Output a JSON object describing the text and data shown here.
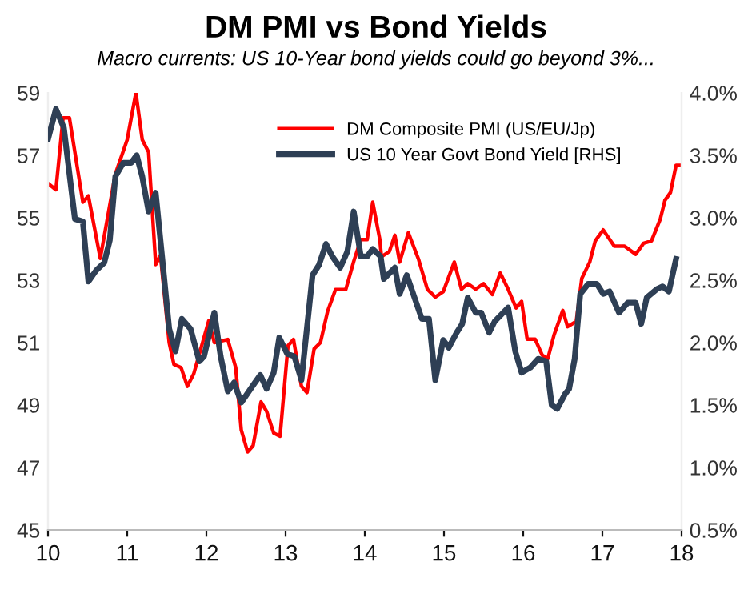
{
  "chart_data": {
    "type": "line",
    "title": "DM PMI vs Bond Yields",
    "subtitle": "Macro currents: US 10-Year bond yields could go beyond 3%...",
    "series": [
      {
        "name": "DM Composite PMI (US/EU/Jp)",
        "color": "#ff0000",
        "x": [
          10.0,
          10.1,
          10.19,
          10.27,
          10.44,
          10.51,
          10.66,
          10.85,
          11.0,
          11.11,
          11.19,
          11.27,
          11.36,
          11.42,
          11.53,
          11.59,
          11.68,
          11.76,
          11.84,
          12.03,
          12.1,
          12.27,
          12.37,
          12.44,
          12.52,
          12.59,
          12.69,
          12.76,
          12.85,
          12.93,
          13.03,
          13.1,
          13.2,
          13.27,
          13.36,
          13.44,
          13.53,
          13.63,
          13.76,
          13.86,
          13.95,
          14.03,
          14.1,
          14.19,
          14.21,
          14.31,
          14.38,
          14.44,
          14.55,
          14.68,
          14.79,
          14.89,
          14.99,
          15.13,
          15.22,
          15.3,
          15.4,
          15.5,
          15.61,
          15.71,
          15.81,
          15.91,
          15.98,
          16.05,
          16.15,
          16.24,
          16.31,
          16.39,
          16.5,
          16.56,
          16.67,
          16.74,
          16.84,
          16.91,
          17.01,
          17.15,
          17.28,
          17.42,
          17.52,
          17.62,
          17.73,
          17.79,
          17.86,
          17.93,
          18.0
        ],
        "values": [
          56.1,
          55.9,
          58.2,
          58.2,
          55.5,
          55.7,
          53.7,
          56.4,
          57.5,
          59.0,
          57.5,
          57.1,
          53.5,
          53.8,
          51.0,
          50.3,
          50.2,
          49.6,
          50.0,
          51.7,
          51.0,
          51.1,
          50.2,
          48.2,
          47.5,
          47.7,
          49.1,
          48.8,
          48.1,
          48.0,
          50.9,
          51.1,
          49.6,
          49.4,
          50.8,
          51.0,
          52.0,
          52.7,
          52.7,
          53.6,
          54.3,
          54.3,
          55.5,
          54.3,
          53.75,
          53.92,
          54.44,
          53.58,
          54.52,
          53.66,
          52.71,
          52.46,
          52.63,
          53.58,
          52.71,
          52.89,
          52.71,
          52.89,
          52.54,
          53.23,
          52.71,
          52.11,
          52.32,
          51.11,
          51.11,
          50.6,
          50.48,
          51.25,
          52.03,
          51.51,
          51.68,
          53.06,
          53.58,
          54.26,
          54.61,
          54.09,
          54.09,
          53.83,
          54.18,
          54.26,
          54.95,
          55.56,
          55.81,
          56.68,
          56.68
        ]
      },
      {
        "name": "US 10 Year Govt Bond Yield [RHS]",
        "color": "#2e3f55",
        "axis": "y2",
        "x": [
          10.0,
          10.1,
          10.2,
          10.34,
          10.44,
          10.51,
          10.61,
          10.71,
          10.78,
          10.85,
          10.95,
          11.05,
          11.12,
          11.19,
          11.27,
          11.36,
          11.44,
          11.53,
          11.61,
          11.69,
          11.8,
          11.91,
          11.97,
          12.1,
          12.18,
          12.27,
          12.35,
          12.44,
          12.58,
          12.68,
          12.76,
          12.85,
          12.92,
          13.02,
          13.11,
          13.2,
          13.34,
          13.42,
          13.51,
          13.59,
          13.69,
          13.78,
          13.86,
          13.95,
          14.03,
          14.1,
          14.2,
          14.24,
          14.38,
          14.44,
          14.53,
          14.72,
          14.81,
          14.89,
          14.99,
          15.06,
          15.16,
          15.23,
          15.3,
          15.4,
          15.47,
          15.57,
          15.64,
          15.81,
          15.9,
          15.98,
          16.09,
          16.19,
          16.29,
          16.36,
          16.43,
          16.53,
          16.58,
          16.65,
          16.72,
          16.82,
          16.93,
          17.01,
          17.09,
          17.21,
          17.32,
          17.42,
          17.49,
          17.56,
          17.69,
          17.76,
          17.84,
          17.93
        ],
        "values": [
          3.63,
          3.87,
          3.72,
          2.99,
          2.97,
          2.49,
          2.58,
          2.64,
          2.82,
          3.33,
          3.44,
          3.44,
          3.5,
          3.33,
          3.05,
          3.2,
          2.69,
          2.11,
          1.93,
          2.19,
          2.11,
          1.85,
          1.89,
          2.24,
          1.89,
          1.61,
          1.68,
          1.52,
          1.65,
          1.74,
          1.63,
          1.76,
          2.04,
          1.91,
          1.89,
          1.7,
          2.54,
          2.62,
          2.79,
          2.69,
          2.6,
          2.73,
          3.05,
          2.69,
          2.69,
          2.75,
          2.69,
          2.51,
          2.6,
          2.39,
          2.54,
          2.19,
          2.19,
          1.7,
          2.02,
          1.96,
          2.08,
          2.15,
          2.36,
          2.24,
          2.24,
          2.08,
          2.17,
          2.28,
          1.93,
          1.76,
          1.8,
          1.87,
          1.85,
          1.5,
          1.47,
          1.59,
          1.63,
          1.87,
          2.39,
          2.47,
          2.47,
          2.39,
          2.41,
          2.24,
          2.32,
          2.32,
          2.15,
          2.36,
          2.43,
          2.45,
          2.41,
          2.67
        ]
      }
    ],
    "xlim": [
      10,
      18
    ],
    "xticks": [
      10,
      11,
      12,
      13,
      14,
      15,
      16,
      17,
      18
    ],
    "ylim": [
      45,
      59
    ],
    "yticks": [
      45,
      47,
      49,
      51,
      53,
      55,
      57,
      59
    ],
    "y2lim": [
      0.5,
      4.0
    ],
    "y2ticks": [
      {
        "value": 0.5,
        "label": "0.5%"
      },
      {
        "value": 1.0,
        "label": "1.0%"
      },
      {
        "value": 1.5,
        "label": "1.5%"
      },
      {
        "value": 2.0,
        "label": "2.0%"
      },
      {
        "value": 2.5,
        "label": "2.5%"
      },
      {
        "value": 3.0,
        "label": "3.0%"
      },
      {
        "value": 3.5,
        "label": "3.5%"
      },
      {
        "value": 4.0,
        "label": "4.0%"
      }
    ],
    "legend": "top right",
    "grid": false
  }
}
